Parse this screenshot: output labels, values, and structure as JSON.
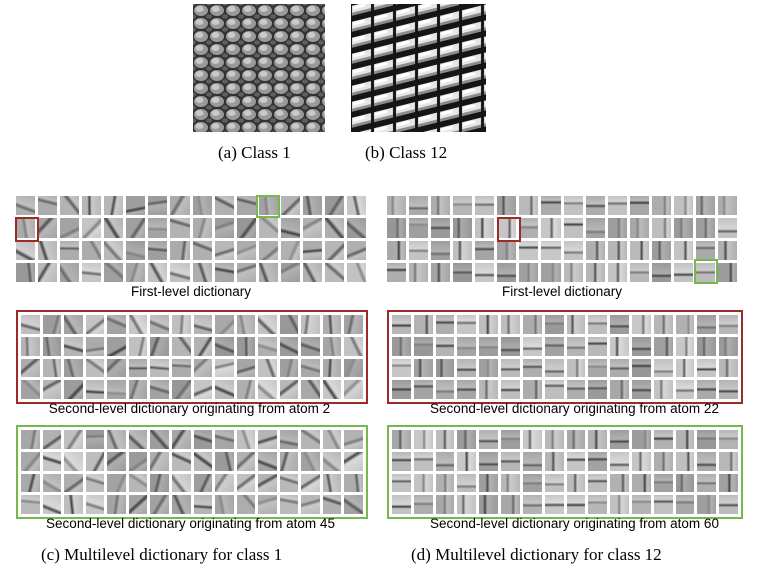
{
  "colors": {
    "red": "#9b2b26",
    "green": "#77b84c"
  },
  "top": {
    "caption_a": "(a) Class 1",
    "caption_b": "(b) Class 12"
  },
  "left_panel": {
    "first_level_label": "First-level dictionary",
    "second_level_red_label": "Second-level dictionary originating from atom 2",
    "second_level_green_label": "Second-level dictionary originating from atom 45",
    "caption": "(c) Multilevel dictionary for class 1"
  },
  "right_panel": {
    "first_level_label": "First-level dictionary",
    "second_level_red_label": "Second-level dictionary originating from atom 22",
    "second_level_green_label": "Second-level dictionary originating from atom 60",
    "caption": "(d) Multilevel dictionary for class 12"
  }
}
